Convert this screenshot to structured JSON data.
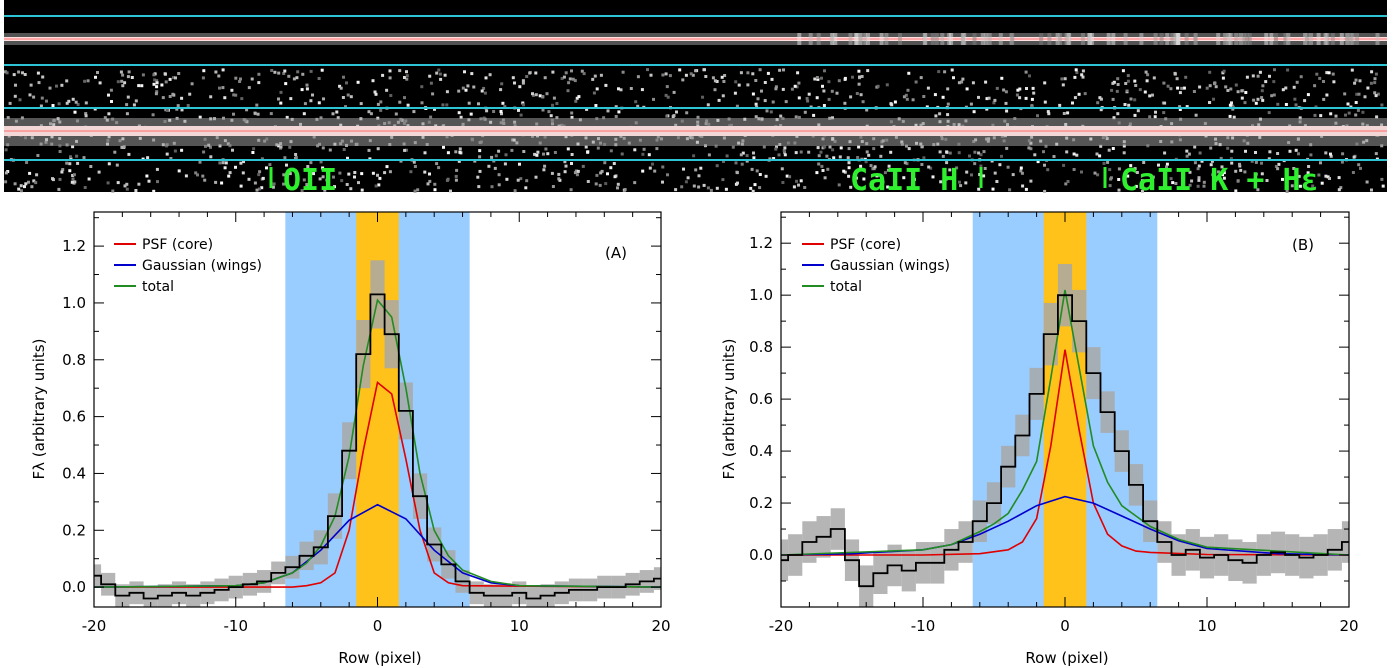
{
  "spectrum_strip": {
    "line_labels": [
      "OII",
      "CaII H",
      "CaII K + Hε"
    ],
    "colors": {
      "guide_lines": "#2ec4d6",
      "trace": "#ff6b6b",
      "labels": "#2ef02e"
    }
  },
  "chart_data": [
    {
      "type": "line",
      "panel_label": "(A)",
      "xlabel": "Row (pixel)",
      "ylabel": "Fλ (arbitrary units)",
      "xlim": [
        -20,
        20
      ],
      "ylim": [
        -0.07,
        1.32
      ],
      "xticks": [
        -20,
        -10,
        0,
        10,
        20
      ],
      "yticks": [
        0.0,
        0.2,
        0.4,
        0.6,
        0.8,
        1.0,
        1.2
      ],
      "shaded_bands": [
        {
          "name": "wings",
          "x0": -6.5,
          "x1": 6.5,
          "color": "#99ccff"
        },
        {
          "name": "core",
          "x0": -1.5,
          "x1": 1.5,
          "color": "#ffc21a"
        }
      ],
      "legend": {
        "placement": "top-left",
        "entries": [
          {
            "label": "PSF (core)",
            "color": "#e00000"
          },
          {
            "label": "Gaussian (wings)",
            "color": "#0000cc"
          },
          {
            "label": "total",
            "color": "#228b22"
          }
        ]
      },
      "series": [
        {
          "name": "PSF (core)",
          "color": "#e00000",
          "x": [
            -20,
            -6,
            -5,
            -4,
            -3,
            -2,
            -1,
            0,
            1,
            2,
            3,
            4,
            5,
            6,
            20
          ],
          "y": [
            0.0,
            0.0,
            0.005,
            0.015,
            0.05,
            0.2,
            0.48,
            0.72,
            0.68,
            0.45,
            0.2,
            0.05,
            0.015,
            0.005,
            0.0
          ]
        },
        {
          "name": "Gaussian (wings)",
          "color": "#0000cc",
          "x": [
            -20,
            -10,
            -8,
            -6,
            -4,
            -2,
            0,
            2,
            4,
            6,
            8,
            10,
            20
          ],
          "y": [
            0.0,
            0.005,
            0.015,
            0.05,
            0.13,
            0.235,
            0.29,
            0.24,
            0.13,
            0.05,
            0.015,
            0.005,
            0.0
          ]
        },
        {
          "name": "total",
          "color": "#228b22",
          "x": [
            -20,
            -10,
            -8,
            -6,
            -5,
            -4,
            -3,
            -2,
            -1,
            0,
            1,
            2,
            3,
            4,
            5,
            6,
            8,
            10,
            20
          ],
          "y": [
            0.0,
            0.005,
            0.015,
            0.05,
            0.085,
            0.145,
            0.25,
            0.46,
            0.78,
            1.01,
            0.95,
            0.7,
            0.4,
            0.2,
            0.11,
            0.06,
            0.02,
            0.005,
            0.0
          ]
        },
        {
          "name": "data",
          "color": "#000000",
          "style": "step",
          "x": [
            -20,
            -19,
            -18,
            -17,
            -16,
            -15,
            -14,
            -13,
            -12,
            -11,
            -10,
            -9,
            -8,
            -7,
            -6,
            -5,
            -4,
            -3,
            -2,
            -1,
            0,
            1,
            2,
            3,
            4,
            5,
            6,
            7,
            8,
            9,
            10,
            11,
            12,
            13,
            14,
            15,
            16,
            17,
            18,
            19,
            20
          ],
          "y": [
            0.04,
            0.01,
            -0.03,
            -0.02,
            -0.04,
            -0.03,
            -0.02,
            -0.03,
            -0.02,
            -0.01,
            0.0,
            0.01,
            0.02,
            0.05,
            0.07,
            0.11,
            0.14,
            0.25,
            0.48,
            0.82,
            1.03,
            0.89,
            0.62,
            0.32,
            0.15,
            0.08,
            0.02,
            -0.02,
            -0.03,
            -0.03,
            -0.02,
            -0.04,
            -0.03,
            -0.02,
            -0.01,
            -0.01,
            0.0,
            0.0,
            0.01,
            0.02,
            0.03
          ],
          "err": [
            0.04,
            0.04,
            0.04,
            0.04,
            0.04,
            0.04,
            0.04,
            0.04,
            0.04,
            0.04,
            0.04,
            0.04,
            0.04,
            0.04,
            0.04,
            0.05,
            0.06,
            0.08,
            0.1,
            0.12,
            0.12,
            0.12,
            0.1,
            0.08,
            0.06,
            0.05,
            0.04,
            0.04,
            0.04,
            0.04,
            0.04,
            0.04,
            0.04,
            0.04,
            0.04,
            0.04,
            0.04,
            0.04,
            0.04,
            0.04,
            0.04
          ]
        }
      ]
    },
    {
      "type": "line",
      "panel_label": "(B)",
      "xlabel": "Row (pixel)",
      "ylabel": "Fλ (arbitrary units)",
      "xlim": [
        -20,
        20
      ],
      "ylim": [
        -0.2,
        1.32
      ],
      "xticks": [
        -20,
        -10,
        0,
        10,
        20
      ],
      "yticks": [
        0.0,
        0.2,
        0.4,
        0.6,
        0.8,
        1.0,
        1.2
      ],
      "shaded_bands": [
        {
          "name": "wings",
          "x0": -6.5,
          "x1": 6.5,
          "color": "#99ccff"
        },
        {
          "name": "core",
          "x0": -1.5,
          "x1": 1.5,
          "color": "#ffc21a"
        }
      ],
      "legend": {
        "placement": "top-left",
        "entries": [
          {
            "label": "PSF (core)",
            "color": "#e00000"
          },
          {
            "label": "Gaussian (wings)",
            "color": "#0000cc"
          },
          {
            "label": "total",
            "color": "#228b22"
          }
        ]
      },
      "series": [
        {
          "name": "PSF (core)",
          "color": "#e00000",
          "x": [
            -20,
            -10,
            -6,
            -4,
            -3,
            -2,
            -1,
            0,
            1,
            2,
            3,
            4,
            5,
            6,
            10,
            20
          ],
          "y": [
            0.0,
            0.0,
            0.005,
            0.02,
            0.05,
            0.14,
            0.42,
            0.79,
            0.48,
            0.2,
            0.08,
            0.035,
            0.015,
            0.01,
            0.002,
            0.0
          ]
        },
        {
          "name": "Gaussian (wings)",
          "color": "#0000cc",
          "x": [
            -20,
            -15,
            -10,
            -8,
            -6,
            -4,
            -2,
            0,
            2,
            4,
            6,
            8,
            10,
            15,
            20
          ],
          "y": [
            0.0,
            0.005,
            0.02,
            0.04,
            0.08,
            0.13,
            0.19,
            0.225,
            0.2,
            0.15,
            0.1,
            0.055,
            0.025,
            0.005,
            0.0
          ]
        },
        {
          "name": "total",
          "color": "#228b22",
          "x": [
            -20,
            -10,
            -8,
            -6,
            -5,
            -4,
            -3,
            -2,
            -1,
            0,
            1,
            2,
            3,
            4,
            5,
            6,
            8,
            10,
            20
          ],
          "y": [
            0.0,
            0.02,
            0.04,
            0.09,
            0.12,
            0.16,
            0.25,
            0.36,
            0.68,
            1.02,
            0.72,
            0.42,
            0.28,
            0.19,
            0.15,
            0.11,
            0.06,
            0.03,
            0.0
          ]
        },
        {
          "name": "data",
          "color": "#000000",
          "style": "step",
          "x": [
            -20,
            -19,
            -18,
            -17,
            -16,
            -15,
            -14,
            -13,
            -12,
            -11,
            -10,
            -9,
            -8,
            -7,
            -6,
            -5,
            -4,
            -3,
            -2,
            -1,
            0,
            1,
            2,
            3,
            4,
            5,
            6,
            7,
            8,
            9,
            10,
            11,
            12,
            13,
            14,
            15,
            16,
            17,
            18,
            19,
            20
          ],
          "y": [
            -0.02,
            0.0,
            0.05,
            0.07,
            0.1,
            -0.02,
            -0.12,
            -0.07,
            -0.04,
            -0.06,
            -0.03,
            -0.03,
            0.02,
            0.05,
            0.13,
            0.2,
            0.34,
            0.46,
            0.62,
            0.85,
            1.0,
            0.9,
            0.7,
            0.55,
            0.4,
            0.27,
            0.13,
            0.05,
            0.0,
            0.02,
            -0.01,
            0.0,
            -0.02,
            -0.03,
            0.0,
            0.01,
            0.0,
            -0.01,
            0.0,
            0.02,
            0.05
          ],
          "err": [
            0.08,
            0.08,
            0.08,
            0.08,
            0.08,
            0.08,
            0.08,
            0.08,
            0.08,
            0.08,
            0.08,
            0.08,
            0.08,
            0.08,
            0.08,
            0.08,
            0.08,
            0.08,
            0.1,
            0.12,
            0.12,
            0.12,
            0.1,
            0.08,
            0.08,
            0.08,
            0.08,
            0.08,
            0.08,
            0.08,
            0.08,
            0.08,
            0.08,
            0.08,
            0.08,
            0.08,
            0.08,
            0.08,
            0.08,
            0.08,
            0.08
          ]
        }
      ]
    }
  ]
}
